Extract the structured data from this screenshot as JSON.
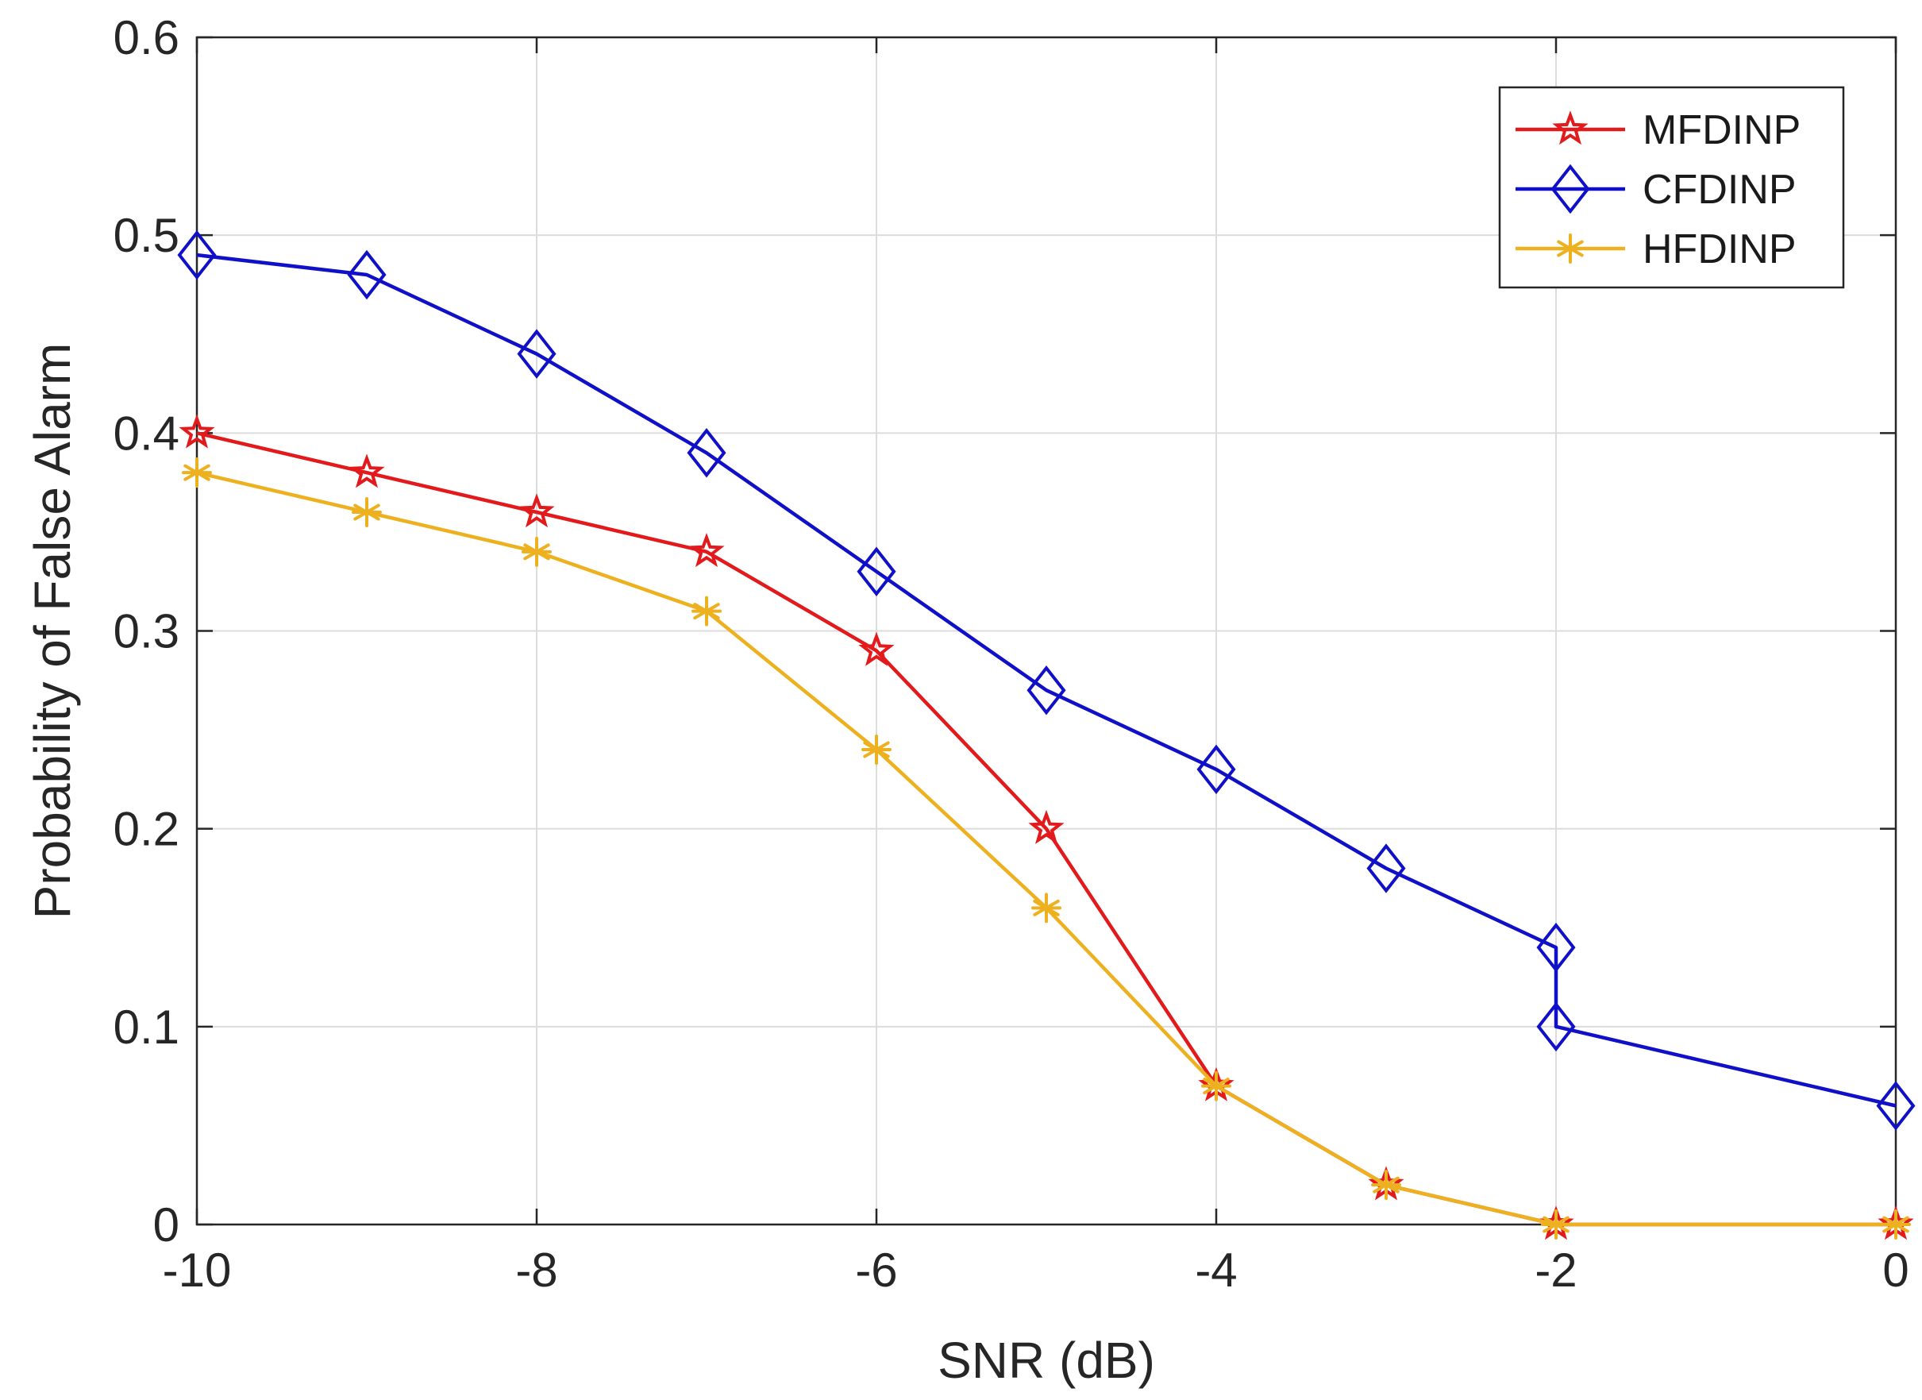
{
  "chart_data": {
    "type": "line",
    "title": "",
    "xlabel": "SNR (dB)",
    "ylabel": "Probability of False Alarm",
    "xlim": [
      -10,
      0
    ],
    "ylim": [
      0,
      0.6
    ],
    "xticks": [
      -10,
      -8,
      -6,
      -4,
      -2,
      0
    ],
    "xtick_labels": [
      "-10",
      "-8",
      "-6",
      "-4",
      "-2",
      "0"
    ],
    "yticks": [
      0,
      0.1,
      0.2,
      0.3,
      0.4,
      0.5,
      0.6
    ],
    "ytick_labels": [
      "0",
      "0.1",
      "0.2",
      "0.3",
      "0.4",
      "0.5",
      "0.6"
    ],
    "grid": true,
    "legend_position": "top-right",
    "series": [
      {
        "name": "MFDINP",
        "color": "#e31a1c",
        "marker": "pentagram",
        "x": [
          -10,
          -9,
          -8,
          -7,
          -6,
          -5,
          -4,
          -3,
          -2,
          0
        ],
        "y": [
          0.4,
          0.38,
          0.36,
          0.34,
          0.29,
          0.2,
          0.07,
          0.02,
          0.0,
          0.0
        ]
      },
      {
        "name": "CFDINP",
        "color": "#1010c8",
        "marker": "diamond",
        "x": [
          -10,
          -9,
          -8,
          -7,
          -6,
          -5,
          -4,
          -3,
          -2,
          -2,
          0
        ],
        "y": [
          0.49,
          0.48,
          0.44,
          0.39,
          0.33,
          0.27,
          0.23,
          0.18,
          0.14,
          0.1,
          0.06
        ]
      },
      {
        "name": "HFDINP",
        "color": "#edb120",
        "marker": "asterisk",
        "x": [
          -10,
          -9,
          -8,
          -7,
          -6,
          -5,
          -4,
          -3,
          -2,
          0
        ],
        "y": [
          0.38,
          0.36,
          0.34,
          0.31,
          0.24,
          0.16,
          0.07,
          0.02,
          0.0,
          0.0
        ]
      }
    ]
  }
}
